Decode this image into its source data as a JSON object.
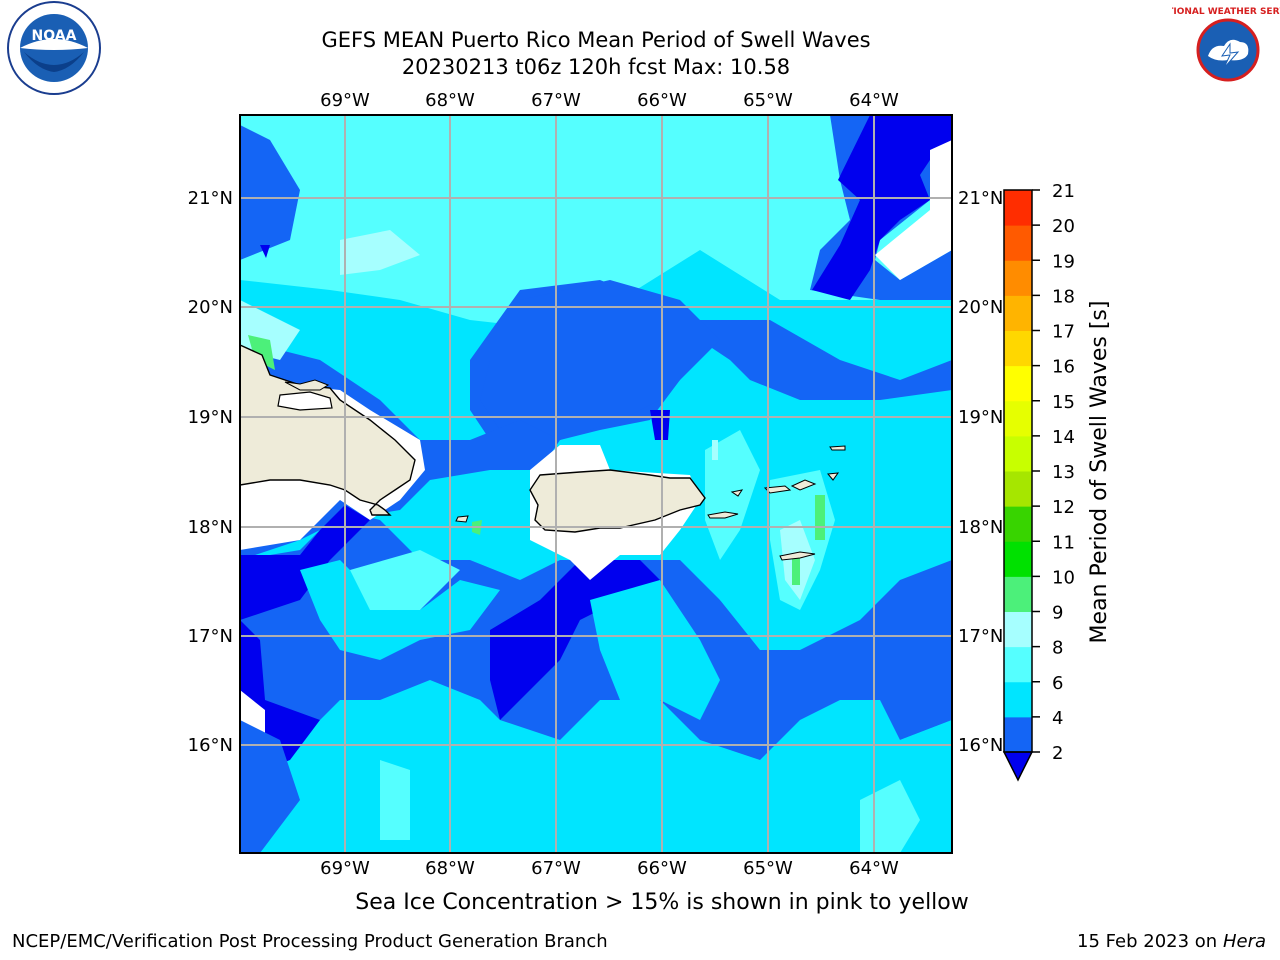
{
  "title": {
    "line1": "GEFS MEAN Puerto Rico Mean Period of Swell Waves",
    "line2": "20230213 t06z 120h fcst   Max: 10.58"
  },
  "map": {
    "lon_labels": [
      "69°W",
      "68°W",
      "67°W",
      "66°W",
      "65°W",
      "64°W"
    ],
    "lat_labels": [
      "21°N",
      "20°N",
      "19°N",
      "18°N",
      "17°N",
      "16°N"
    ],
    "background_land": "#eeebd9"
  },
  "colorbar": {
    "label": "Mean Period of Swell Waves [s]",
    "levels": [
      "2",
      "4",
      "6",
      "8",
      "9",
      "10",
      "11",
      "12",
      "13",
      "14",
      "15",
      "16",
      "17",
      "18",
      "19",
      "20",
      "21"
    ],
    "colors": [
      "#1465f5",
      "#00e5ff",
      "#55ffff",
      "#a6ffff",
      "#4cf07a",
      "#00e100",
      "#38d400",
      "#a6e600",
      "#c8ff00",
      "#e6ff00",
      "#ffff00",
      "#ffd700",
      "#ffb400",
      "#ff8c00",
      "#ff5a00",
      "#ff2d00",
      "#ff0000"
    ],
    "under_color": "#0000ee"
  },
  "footer": {
    "ice_note": "Sea Ice Concentration > 15% is shown in pink to yellow",
    "branch": "NCEP/EMC/Verification Post Processing Product Generation Branch",
    "date": "15 Feb 2023 on",
    "host": "Hera"
  },
  "logos": {
    "left": "NOAA",
    "right": "NATIONAL WEATHER SERVICE"
  }
}
